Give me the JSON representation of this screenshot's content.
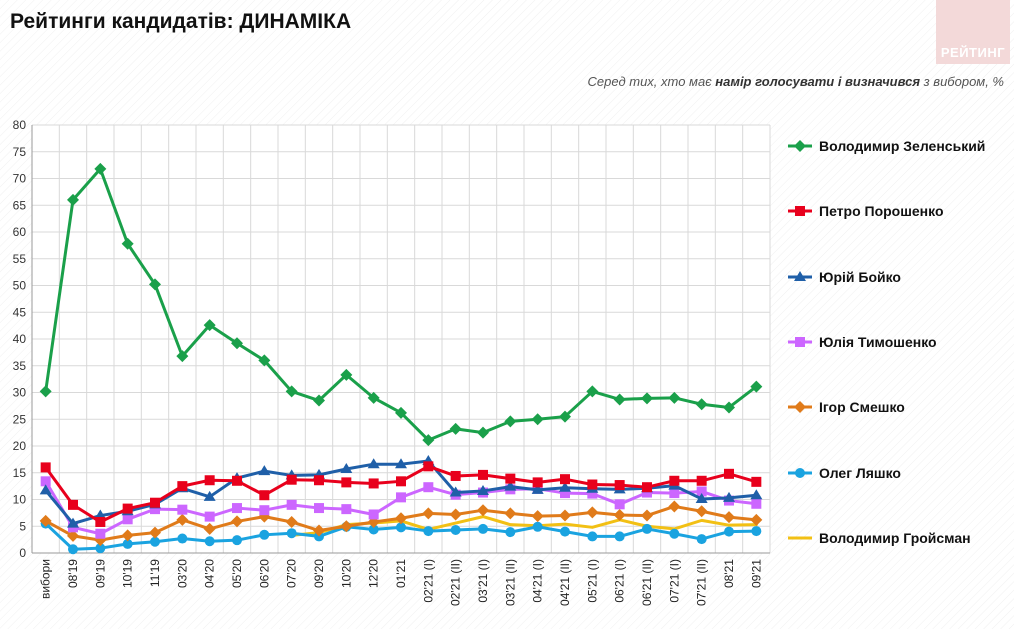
{
  "header": {
    "title": "Рейтинги кандидатів: ДИНАМІКА",
    "subtitle_prefix": "Серед тих, хто має ",
    "subtitle_bold": "намір голосувати і визначився",
    "subtitle_suffix": " з вибором, %",
    "logo_text": "РЕЙТИНГ"
  },
  "chart_data": {
    "type": "line",
    "title": "",
    "xlabel": "",
    "ylabel": "",
    "ylim": [
      0,
      80
    ],
    "yticks": [
      0,
      5,
      10,
      15,
      20,
      25,
      30,
      35,
      40,
      45,
      50,
      55,
      60,
      65,
      70,
      75,
      80
    ],
    "grid": true,
    "legend_position": "right",
    "categories": [
      "вибори",
      "08'19",
      "09'19",
      "10'19",
      "11'19",
      "03'20",
      "04'20",
      "05'20",
      "06'20",
      "07'20",
      "09'20",
      "10'20",
      "12'20",
      "01'21",
      "02'21 (I)",
      "02'21 (II)",
      "03'21 (I)",
      "03'21 (II)",
      "04'21 (I)",
      "04'21 (II)",
      "05'21 (I)",
      "06'21 (I)",
      "06'21 (II)",
      "07'21 (I)",
      "07'21 (II)",
      "08'21",
      "09'21"
    ],
    "series": [
      {
        "name": "Володимир Зеленський",
        "color": "#1aa04a",
        "marker": "diamond",
        "values": [
          30.2,
          66,
          71.8,
          57.8,
          50.2,
          36.8,
          42.6,
          39.2,
          36,
          30.2,
          28.5,
          33.3,
          29,
          26.2,
          21.1,
          23.2,
          22.5,
          24.6,
          25,
          25.5,
          30.2,
          28.7,
          28.9,
          29,
          27.8,
          27.2,
          31.1
        ]
      },
      {
        "name": "Петро Порошенко",
        "color": "#e8001c",
        "marker": "square",
        "values": [
          16,
          9,
          5.8,
          8.3,
          9.4,
          12.5,
          13.6,
          13.5,
          10.8,
          13.7,
          13.6,
          13.2,
          13,
          13.4,
          16.2,
          14.4,
          14.6,
          13.9,
          13.2,
          13.8,
          12.8,
          12.7,
          12.3,
          13.5,
          13.5,
          14.8,
          13.3
        ]
      },
      {
        "name": "Юрій Бойко",
        "color": "#1f5fa8",
        "marker": "triangle",
        "values": [
          11.7,
          5.5,
          7,
          7.8,
          9.1,
          12.1,
          10.5,
          14,
          15.3,
          14.5,
          14.6,
          15.7,
          16.6,
          16.6,
          17.2,
          11.3,
          11.6,
          12.4,
          11.8,
          12.2,
          12,
          11.9,
          12.1,
          12.6,
          10.1,
          10.3,
          10.8
        ]
      },
      {
        "name": "Юлія Тимошенко",
        "color": "#cc66ff",
        "marker": "square",
        "values": [
          13.4,
          4.8,
          3.6,
          6.3,
          8.2,
          8.1,
          6.8,
          8.4,
          8,
          9,
          8.4,
          8.2,
          7.2,
          10.4,
          12.3,
          10.9,
          11.3,
          11.9,
          12,
          11.2,
          11.1,
          9.1,
          11.3,
          11.2,
          11.5,
          9.8,
          9.2
        ]
      },
      {
        "name": "Ігор Смешко",
        "color": "#e07b1a",
        "marker": "diamond",
        "values": [
          6,
          3.2,
          2.4,
          3.3,
          3.8,
          6.2,
          4.5,
          5.9,
          6.8,
          5.8,
          4.2,
          5,
          5.8,
          6.5,
          7.4,
          7.2,
          8,
          7.4,
          6.9,
          7,
          7.6,
          7.1,
          7,
          8.7,
          7.8,
          6.7,
          6.2
        ]
      },
      {
        "name": "Олег Ляшко",
        "color": "#1aa3e0",
        "marker": "circle",
        "values": [
          5.5,
          0.7,
          0.9,
          1.7,
          2.1,
          2.7,
          2.2,
          2.4,
          3.4,
          3.7,
          3.1,
          4.9,
          4.4,
          4.8,
          4.1,
          4.3,
          4.5,
          3.9,
          4.9,
          4,
          3.1,
          3.1,
          4.5,
          3.6,
          2.6,
          4,
          4.1
        ]
      },
      {
        "name": "Володимир Гройсман",
        "color": "#f2c014",
        "marker": "none",
        "values": [
          null,
          null,
          null,
          null,
          null,
          null,
          null,
          null,
          null,
          3.3,
          3.8,
          5.3,
          5.6,
          6,
          4.4,
          5.6,
          6.8,
          5.3,
          5.1,
          5.4,
          4.8,
          6.2,
          5,
          4.5,
          6.1,
          5.2,
          5.3
        ]
      }
    ]
  }
}
